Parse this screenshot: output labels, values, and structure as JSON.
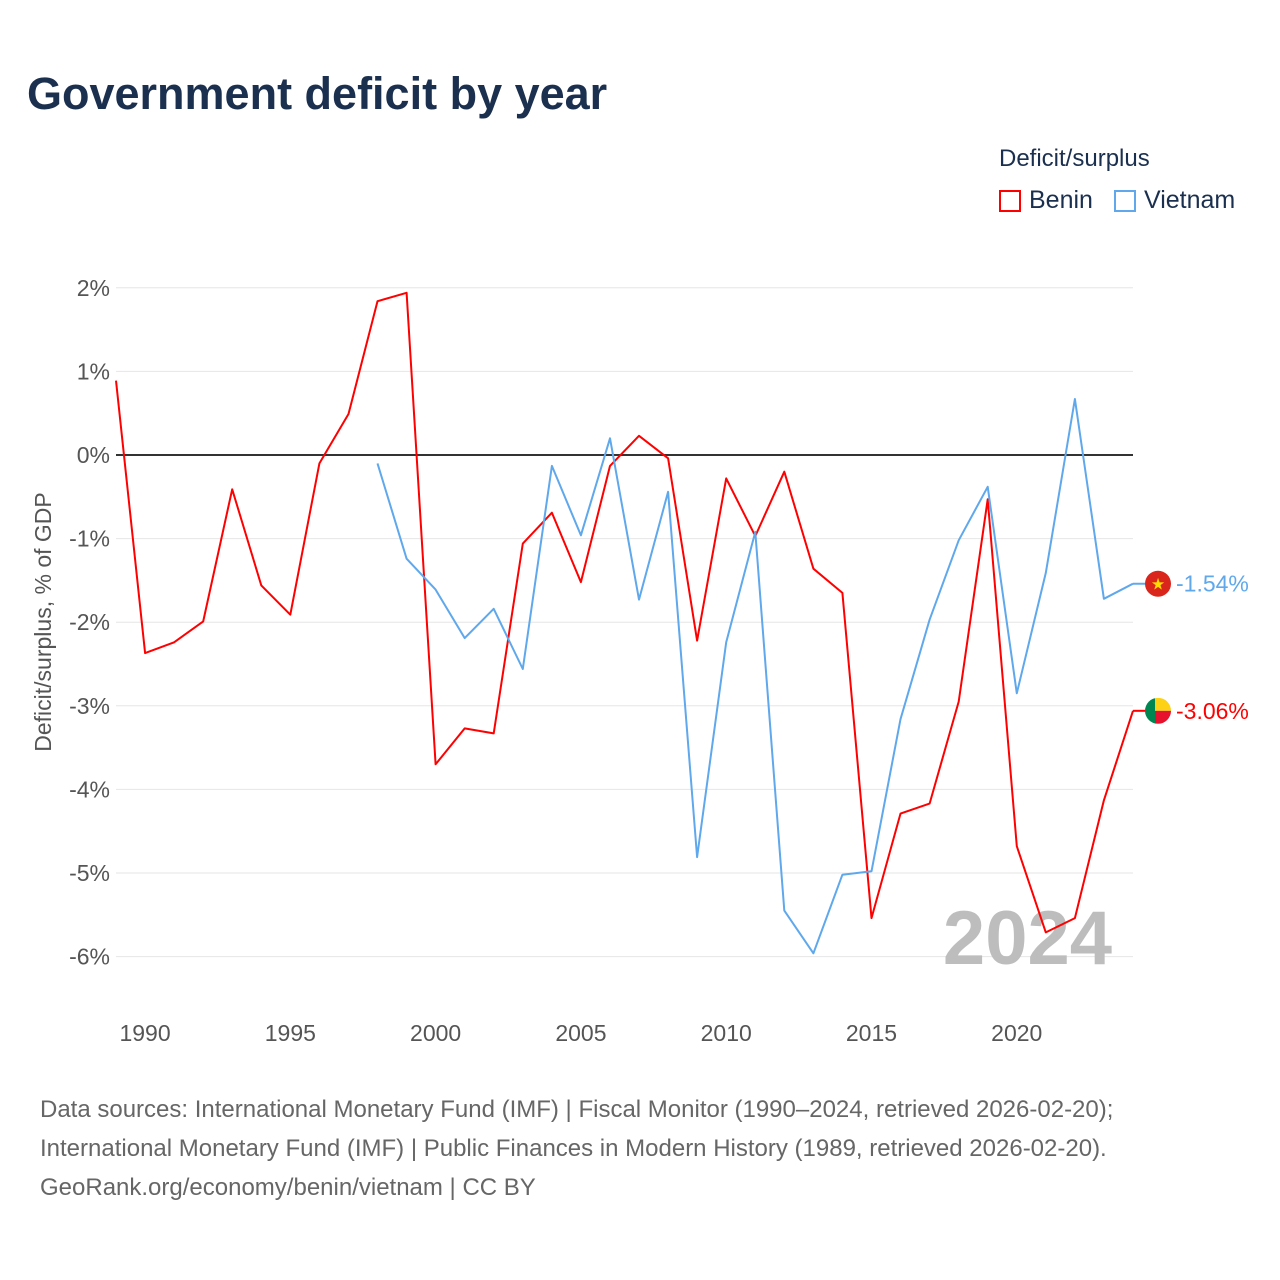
{
  "title": "Government deficit by year",
  "legend": {
    "title": "Deficit/surplus",
    "items": [
      {
        "name": "Benin",
        "color": "#ff0000"
      },
      {
        "name": "Vietnam",
        "color": "#5fa8ec"
      }
    ]
  },
  "watermark_year": "2024",
  "footer": [
    "Data sources: International Monetary Fund (IMF) | Fiscal Monitor (1990–2024, retrieved 2026-02-20);",
    "International Monetary Fund (IMF) | Public Finances in Modern History (1989, retrieved 2026-02-20).",
    "GeoRank.org/economy/benin/vietnam | CC BY"
  ],
  "chart_data": {
    "type": "line",
    "title": "Government deficit by year",
    "xlabel": "",
    "ylabel": "Deficit/surplus, % of GDP",
    "xlim": [
      1989,
      2024
    ],
    "ylim": [
      -6.6,
      2.2
    ],
    "x_ticks": [
      1990,
      1995,
      2000,
      2005,
      2010,
      2015,
      2020
    ],
    "y_ticks": [
      2,
      1,
      0,
      -1,
      -2,
      -3,
      -4,
      -5,
      -6
    ],
    "y_tick_labels": [
      "2%",
      "1%",
      "0%",
      "-1%",
      "-2%",
      "-3%",
      "-4%",
      "-5%",
      "-6%"
    ],
    "grid": true,
    "legend_position": "top-right",
    "series": [
      {
        "name": "Benin",
        "color": "#ff0000",
        "end_label": "-3.06%",
        "x": [
          1989,
          1990,
          1991,
          1992,
          1993,
          1994,
          1995,
          1996,
          1997,
          1998,
          1999,
          2000,
          2001,
          2002,
          2003,
          2004,
          2005,
          2006,
          2007,
          2008,
          2009,
          2010,
          2011,
          2012,
          2013,
          2014,
          2015,
          2016,
          2017,
          2018,
          2019,
          2020,
          2021,
          2022,
          2023,
          2024
        ],
        "values": [
          0.89,
          -2.37,
          -2.24,
          -1.99,
          -0.41,
          -1.56,
          -1.91,
          -0.1,
          0.49,
          1.84,
          1.94,
          -3.7,
          -3.27,
          -3.33,
          -1.06,
          -0.69,
          -1.52,
          -0.13,
          0.23,
          -0.04,
          -2.22,
          -0.28,
          -0.97,
          -0.2,
          -1.36,
          -1.65,
          -5.54,
          -4.29,
          -4.17,
          -2.95,
          -0.53,
          -4.68,
          -5.71,
          -5.54,
          -4.13,
          -3.06
        ]
      },
      {
        "name": "Vietnam",
        "color": "#5fa8ec",
        "end_label": "-1.54%",
        "x": [
          1998,
          1999,
          2000,
          2001,
          2002,
          2003,
          2004,
          2005,
          2006,
          2007,
          2008,
          2009,
          2010,
          2011,
          2012,
          2013,
          2014,
          2015,
          2016,
          2017,
          2018,
          2019,
          2020,
          2021,
          2022,
          2023,
          2024
        ],
        "values": [
          -0.1,
          -1.24,
          -1.61,
          -2.19,
          -1.84,
          -2.56,
          -0.13,
          -0.96,
          0.2,
          -1.73,
          -0.44,
          -4.81,
          -2.24,
          -0.92,
          -5.45,
          -5.96,
          -5.02,
          -4.98,
          -3.16,
          -1.97,
          -1.02,
          -0.38,
          -2.85,
          -1.41,
          0.67,
          -1.72,
          -1.54
        ]
      }
    ]
  }
}
